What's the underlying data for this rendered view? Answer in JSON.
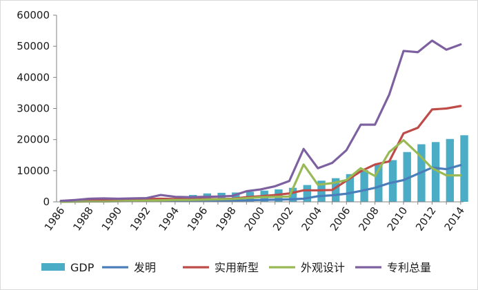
{
  "chart_data": {
    "type": "bar",
    "x": [
      1986,
      1987,
      1988,
      1989,
      1990,
      1991,
      1992,
      1993,
      1994,
      1995,
      1996,
      1997,
      1998,
      1999,
      2000,
      2001,
      2002,
      2003,
      2004,
      2005,
      2006,
      2007,
      2008,
      2009,
      2010,
      2011,
      2012,
      2013,
      2014
    ],
    "x_tick_labels": [
      "1986",
      "1988",
      "1990",
      "1992",
      "1994",
      "1996",
      "1998",
      "2000",
      "2002",
      "2004",
      "2006",
      "2008",
      "2010",
      "2012",
      "2014"
    ],
    "ylim": [
      0,
      60000
    ],
    "y_ticks": [
      "0",
      "10000",
      "20000",
      "30000",
      "40000",
      "50000",
      "60000"
    ],
    "grid": false,
    "legend_position": "bottom",
    "series": [
      {
        "name": "GDP",
        "kind": "bar",
        "color": "#4bacc6",
        "values": [
          400,
          500,
          600,
          700,
          800,
          900,
          1100,
          1300,
          1600,
          2200,
          2700,
          2900,
          3000,
          3200,
          3600,
          4000,
          4500,
          5400,
          6800,
          7600,
          8900,
          10200,
          11900,
          13400,
          16000,
          18500,
          19200,
          20200,
          21400
        ]
      },
      {
        "name": "发明",
        "kind": "line",
        "color": "#4a7ebb",
        "values": [
          100,
          150,
          200,
          250,
          250,
          250,
          300,
          300,
          300,
          300,
          350,
          350,
          400,
          500,
          600,
          700,
          800,
          1000,
          1800,
          2100,
          2600,
          3500,
          4500,
          6000,
          7000,
          9000,
          11000,
          10500,
          11800
        ]
      },
      {
        "name": "实用新型",
        "kind": "line",
        "color": "#be4b48",
        "values": [
          200,
          500,
          700,
          800,
          800,
          800,
          900,
          1000,
          900,
          800,
          900,
          900,
          1000,
          1500,
          1800,
          2200,
          2700,
          3700,
          3700,
          3800,
          6800,
          9800,
          12000,
          13000,
          22000,
          23800,
          29700,
          30000,
          30800
        ]
      },
      {
        "name": "外观设计",
        "kind": "line",
        "color": "#98b954",
        "values": [
          0,
          50,
          100,
          100,
          200,
          300,
          400,
          500,
          600,
          600,
          700,
          800,
          900,
          1200,
          1500,
          1600,
          1700,
          12000,
          5500,
          6000,
          7000,
          10800,
          8300,
          16000,
          19800,
          15500,
          10800,
          8500,
          8500
        ]
      },
      {
        "name": "专利总量",
        "kind": "line",
        "color": "#7d60a0",
        "values": [
          300,
          600,
          1000,
          1100,
          1000,
          1100,
          1200,
          2200,
          1600,
          1500,
          1600,
          1700,
          1900,
          3400,
          4000,
          5000,
          6700,
          17000,
          10800,
          12500,
          16600,
          24800,
          24800,
          34500,
          48500,
          48100,
          51800,
          48900,
          50600
        ]
      }
    ]
  }
}
